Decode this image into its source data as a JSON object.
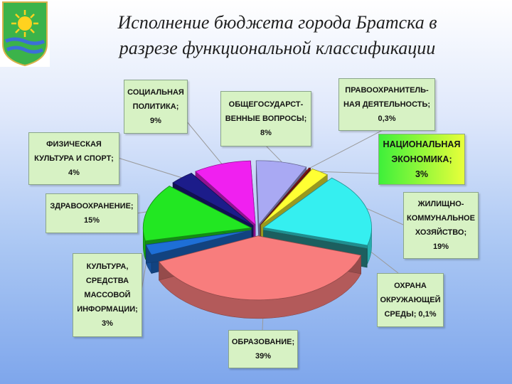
{
  "title_line1": "Исполнение бюджета города Братска в",
  "title_line2": "разрезе функциональной классификации",
  "emblem": "bratsk-crest-icon",
  "colors": {
    "label_bg": "#d7f2c4",
    "highlight_from": "#3ef03a",
    "highlight_to": "#e8ff3a"
  },
  "chart_data": {
    "type": "pie",
    "style": "3d-exploded",
    "title": "Исполнение бюджета города Братска в разрезе функциональной классификации",
    "slices": [
      {
        "label": "ОБЩЕГОСУДАРСТВЕННЫЕ ВОПРОСЫ",
        "value": 8,
        "color": "#a9a9f3"
      },
      {
        "label": "ПРАВООХРАНИТЕЛЬНАЯ ДЕЯТЕЛЬНОСТЬ",
        "value": 0.3,
        "color": "#9a1a1a"
      },
      {
        "label": "НАЦИОНАЛЬНАЯ ЭКОНОМИКА",
        "value": 3,
        "color": "#ffff33"
      },
      {
        "label": "ЖИЛИЩНО-КОММУНАЛЬНОЕ ХОЗЯЙСТВО",
        "value": 19,
        "color": "#35eff0"
      },
      {
        "label": "ОХРАНА ОКРУЖАЮЩЕЙ СРЕДЫ",
        "value": 0.1,
        "color": "#2f9f9f"
      },
      {
        "label": "ОБРАЗОВАНИЕ",
        "value": 39,
        "color": "#f87d7d"
      },
      {
        "label": "КУЛЬТУРА, СРЕДСТВА МАССОВОЙ ИНФОРМАЦИИ",
        "value": 3,
        "color": "#1e6fd6"
      },
      {
        "label": "ЗДРАВООХРАНЕНИЕ",
        "value": 15,
        "color": "#22e722"
      },
      {
        "label": "ФИЗИЧЕСКАЯ КУЛЬТУРА И СПОРТ",
        "value": 4,
        "color": "#1c1c8a"
      },
      {
        "label": "СОЦИАЛЬНАЯ ПОЛИТИКА",
        "value": 9,
        "color": "#f020f0"
      }
    ]
  },
  "labels": {
    "obsh": {
      "lines": [
        "ОБЩЕГОСУДАРСТ-",
        "ВЕННЫЕ ВОПРОСЫ;",
        "8%"
      ]
    },
    "pravo": {
      "lines": [
        "ПРАВООХРАНИТЕЛЬ-",
        "НАЯ ДЕЯТЕЛЬНОСТЬ;",
        "0,3%"
      ]
    },
    "nac": {
      "lines": [
        "НАЦИОНАЛЬНАЯ",
        "ЭКОНОМИКА;",
        "3%"
      ]
    },
    "zhkh": {
      "lines": [
        "ЖИЛИЩНО-",
        "КОММУНАЛЬНОЕ",
        "ХОЗЯЙСТВО;",
        "19%"
      ]
    },
    "ohr": {
      "lines": [
        "ОХРАНА",
        "ОКРУЖАЮЩЕЙ",
        "СРЕДЫ; 0,1%"
      ]
    },
    "obr": {
      "lines": [
        "ОБРАЗОВАНИЕ;",
        "39%"
      ]
    },
    "kult": {
      "lines": [
        "КУЛЬТУРА,",
        "СРЕДСТВА",
        "МАССОВОЙ",
        "ИНФОРМАЦИИ;",
        "3%"
      ]
    },
    "zdrav": {
      "lines": [
        "ЗДРАВООХРАНЕНИЕ;",
        "15%"
      ]
    },
    "fiz": {
      "lines": [
        "ФИЗИЧЕСКАЯ",
        "КУЛЬТУРА И СПОРТ;",
        "4%"
      ]
    },
    "soc": {
      "lines": [
        "СОЦИАЛЬНАЯ",
        "ПОЛИТИКА;",
        "9%"
      ]
    }
  }
}
